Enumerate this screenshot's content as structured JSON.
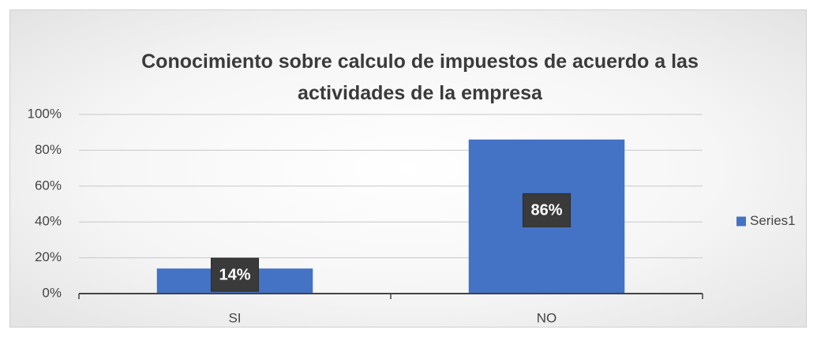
{
  "chart_data": {
    "type": "bar",
    "title": "Conocimiento sobre calculo de impuestos de acuerdo a las actividades de la empresa",
    "categories": [
      "SI",
      "NO"
    ],
    "series": [
      {
        "name": "Series1",
        "color": "#4472c4",
        "values": [
          14,
          86
        ],
        "value_labels": [
          "14%",
          "86%"
        ]
      }
    ],
    "ylim": [
      0,
      100
    ],
    "yticks": [
      {
        "value": 0,
        "label": "0%"
      },
      {
        "value": 20,
        "label": "20%"
      },
      {
        "value": 40,
        "label": "40%"
      },
      {
        "value": 60,
        "label": "60%"
      },
      {
        "value": 80,
        "label": "80%"
      },
      {
        "value": 100,
        "label": "100%"
      }
    ],
    "grid": true,
    "legend": "right"
  }
}
